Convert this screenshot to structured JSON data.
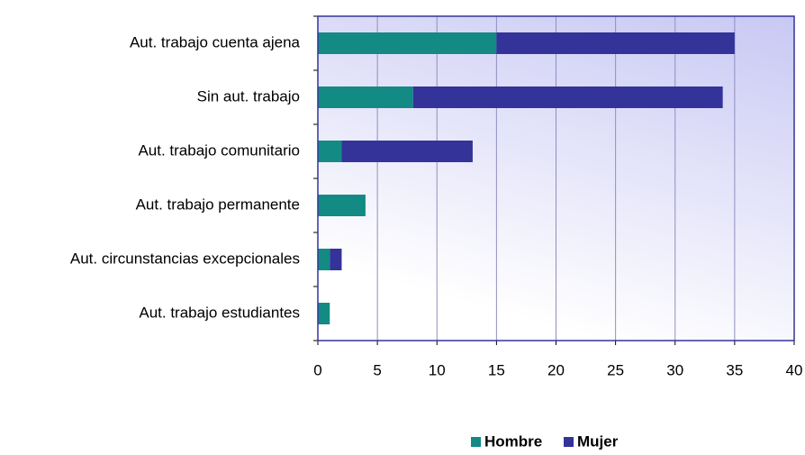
{
  "chart_data": {
    "type": "bar",
    "orientation": "horizontal",
    "stacked": true,
    "categories": [
      "Aut. trabajo cuenta ajena",
      "Sin aut.  trabajo",
      "Aut. trabajo comunitario",
      "Aut. trabajo permanente",
      "Aut. circunstancias excepcionales",
      "Aut. trabajo estudiantes"
    ],
    "series": [
      {
        "name": "Hombre",
        "color": "#138a84",
        "values": [
          15,
          8,
          2,
          4,
          1,
          1
        ]
      },
      {
        "name": "Mujer",
        "color": "#333399",
        "values": [
          20,
          26,
          11,
          0,
          1,
          0
        ]
      }
    ],
    "xlim": [
      0,
      40
    ],
    "xticks": [
      0,
      5,
      10,
      15,
      20,
      25,
      30,
      35,
      40
    ],
    "grid": true,
    "legend": "bottom"
  }
}
